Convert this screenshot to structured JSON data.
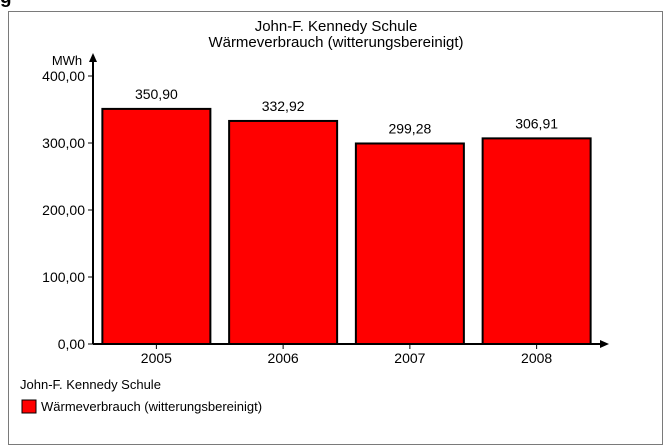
{
  "page": {
    "heading": "g"
  },
  "chart_data": {
    "type": "bar",
    "title": "John-F. Kennedy Schule",
    "subtitle": "Wärmeverbrauch (witterungsbereinigt)",
    "ylabel": "MWh",
    "xlabel": "",
    "categories": [
      "2005",
      "2006",
      "2007",
      "2008"
    ],
    "series": [
      {
        "name": "Wärmeverbrauch (witterungsbereinigt)",
        "values": [
          350.9,
          332.92,
          299.28,
          306.91
        ],
        "value_labels": [
          "350,90",
          "332,92",
          "299,28",
          "306,91"
        ],
        "color": "#ff0000"
      }
    ],
    "ylim": [
      0,
      400
    ],
    "yticks": [
      0,
      100,
      200,
      300,
      400
    ],
    "ytick_labels": [
      "0,00",
      "100,00",
      "200,00",
      "300,00",
      "400,00"
    ],
    "grid": false,
    "legend": {
      "position": "bottom-left",
      "title": "John-F. Kennedy Schule",
      "entries": [
        "Wärmeverbrauch (witterungsbereinigt)"
      ]
    }
  }
}
